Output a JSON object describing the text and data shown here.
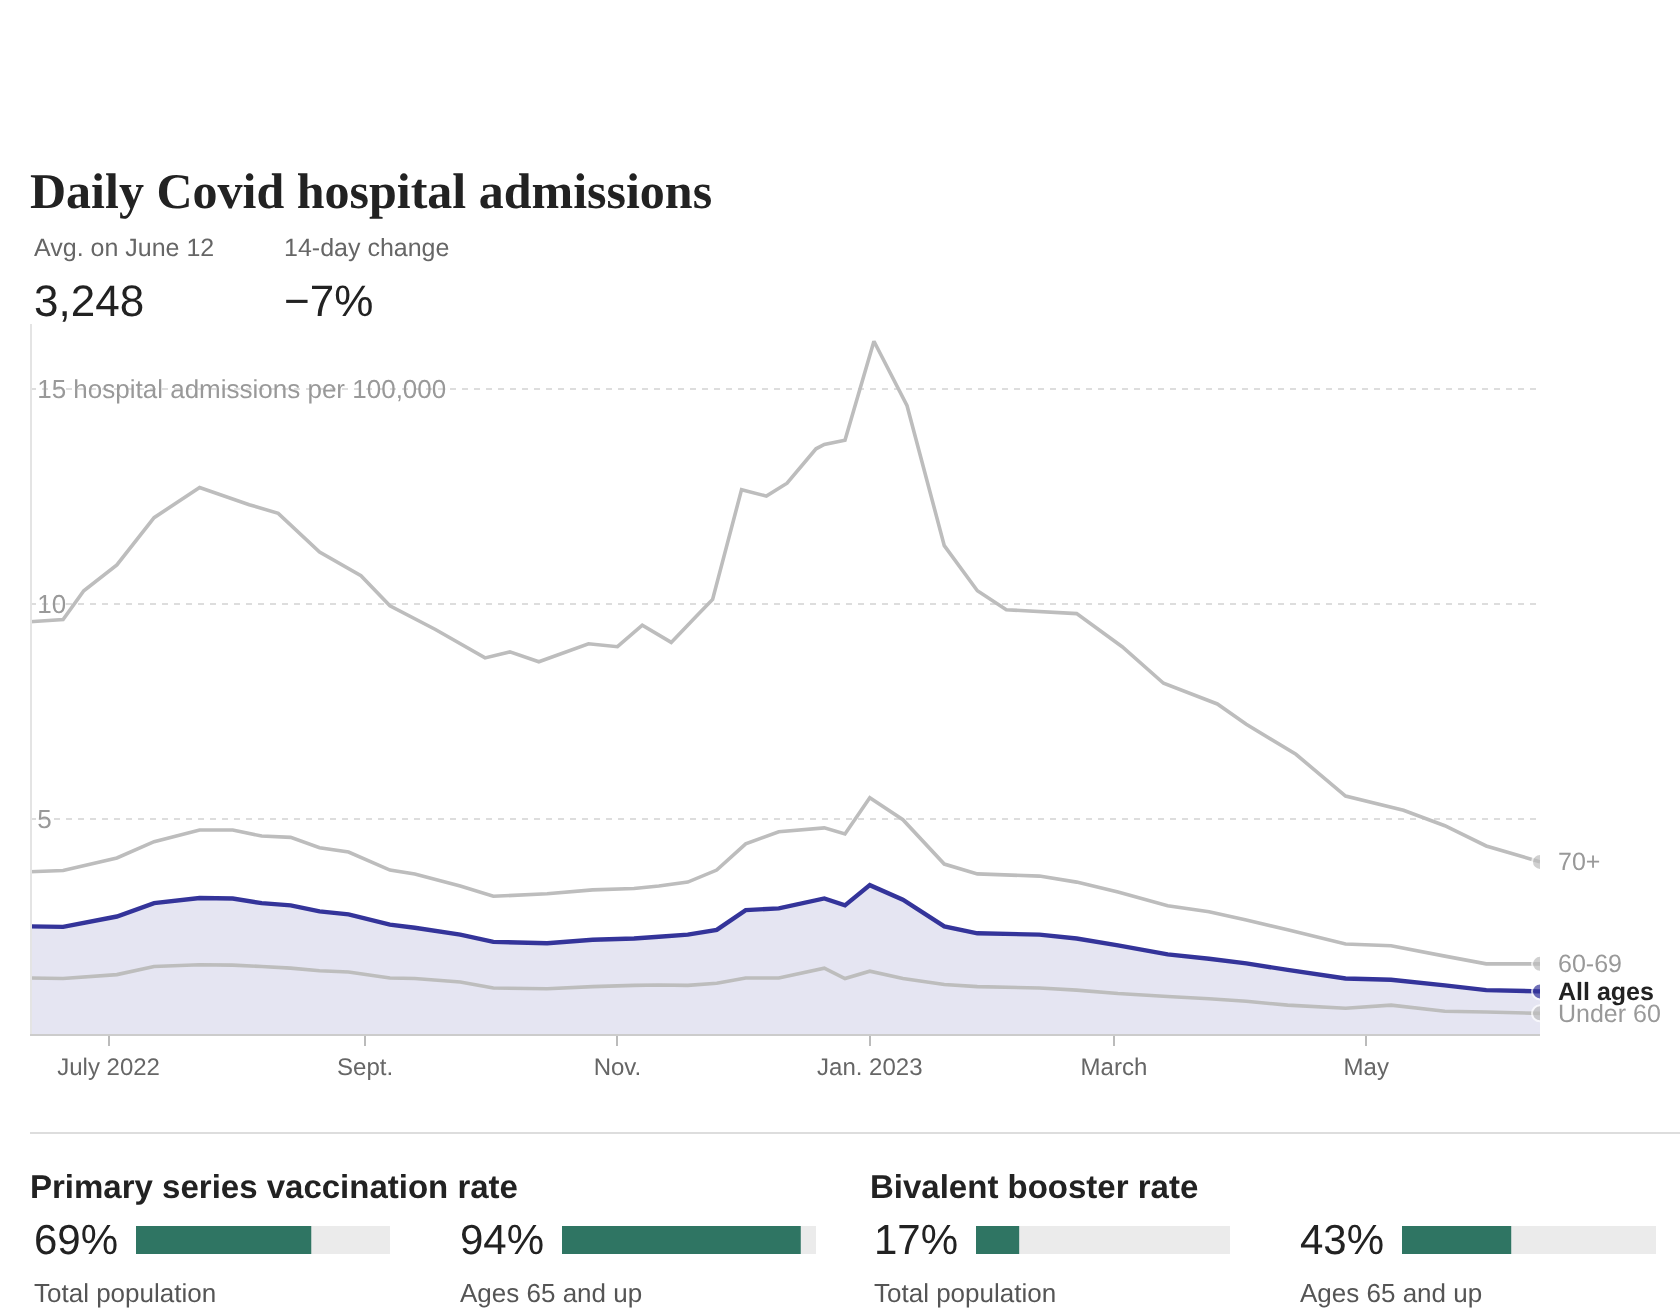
{
  "chart_data": [
    {
      "type": "line",
      "title": "Daily Covid hospital admissions",
      "annotations": [
        "Avg. on June 12",
        "3,248",
        "14-day change",
        "−7%"
      ],
      "xlim": [
        "2022-06-12",
        "2023-06-12"
      ],
      "xticks": [
        {
          "value": "2022-07-01",
          "label": "July 2022"
        },
        {
          "value": "2022-09-01",
          "label": "Sept."
        },
        {
          "value": "2022-11-01",
          "label": "Nov."
        },
        {
          "value": "2023-01-01",
          "label": "Jan. 2023"
        },
        {
          "value": "2023-03-01",
          "label": "March"
        },
        {
          "value": "2023-05-01",
          "label": "May"
        }
      ],
      "ylim": [
        0,
        16.5
      ],
      "yticks": [
        5,
        10,
        {
          "value": 15,
          "label": "15 hospital admissions per 100,000"
        }
      ],
      "grid": "y",
      "series": [
        {
          "name": "All ages",
          "type": "area",
          "color": "#34349a",
          "x": [
            "2022-06-12",
            "2022-06-20",
            "2022-07-03",
            "2022-07-12",
            "2022-07-23",
            "2022-07-31",
            "2022-08-07",
            "2022-08-14",
            "2022-08-21",
            "2022-08-28",
            "2022-09-07",
            "2022-09-13",
            "2022-09-24",
            "2022-10-02",
            "2022-10-15",
            "2022-10-26",
            "2022-11-05",
            "2022-11-11",
            "2022-11-18",
            "2022-11-25",
            "2022-12-02",
            "2022-12-10",
            "2022-12-21",
            "2022-12-26",
            "2023-01-01",
            "2023-01-09",
            "2023-01-19",
            "2023-01-27",
            "2023-02-11",
            "2023-02-20",
            "2023-03-02",
            "2023-03-14",
            "2023-03-24",
            "2023-04-02",
            "2023-04-12",
            "2023-04-26",
            "2023-05-07",
            "2023-05-20",
            "2023-05-30",
            "2023-06-12"
          ],
          "values": [
            2.5,
            2.49,
            2.73,
            3.04,
            3.16,
            3.15,
            3.04,
            2.99,
            2.85,
            2.78,
            2.54,
            2.47,
            2.31,
            2.14,
            2.11,
            2.19,
            2.22,
            2.26,
            2.31,
            2.42,
            2.88,
            2.92,
            3.15,
            2.99,
            3.46,
            3.12,
            2.5,
            2.34,
            2.31,
            2.22,
            2.06,
            1.85,
            1.75,
            1.64,
            1.49,
            1.29,
            1.26,
            1.13,
            1.02,
            0.99
          ]
        },
        {
          "name": "70+",
          "type": "line",
          "color": "#bdbdbd",
          "x": [
            "2022-06-12",
            "2022-06-20",
            "2022-06-25",
            "2022-07-03",
            "2022-07-12",
            "2022-07-23",
            "2022-08-04",
            "2022-08-11",
            "2022-08-21",
            "2022-08-31",
            "2022-09-07",
            "2022-09-18",
            "2022-09-30",
            "2022-10-06",
            "2022-10-13",
            "2022-10-25",
            "2022-11-01",
            "2022-11-07",
            "2022-11-14",
            "2022-11-20",
            "2022-11-24",
            "2022-12-01",
            "2022-12-07",
            "2022-12-12",
            "2022-12-19",
            "2022-12-21",
            "2022-12-26",
            "2023-01-02",
            "2023-01-10",
            "2023-01-19",
            "2023-01-27",
            "2023-02-03",
            "2023-02-20",
            "2023-03-03",
            "2023-03-13",
            "2023-03-26",
            "2023-04-02",
            "2023-04-14",
            "2023-04-26",
            "2023-05-10",
            "2023-05-20",
            "2023-05-30",
            "2023-06-12"
          ],
          "values": [
            9.58,
            9.63,
            10.3,
            10.9,
            12.0,
            12.7,
            12.3,
            12.1,
            11.2,
            10.65,
            9.95,
            9.4,
            8.74,
            8.88,
            8.65,
            9.07,
            9.0,
            9.5,
            9.1,
            9.7,
            10.1,
            12.65,
            12.5,
            12.8,
            13.6,
            13.7,
            13.8,
            16.1,
            14.6,
            11.35,
            10.3,
            9.86,
            9.77,
            9.0,
            8.15,
            7.67,
            7.2,
            6.5,
            5.53,
            5.2,
            4.84,
            4.37,
            4.0
          ]
        },
        {
          "name": "60-69",
          "type": "line",
          "color": "#bdbdbd",
          "x": [
            "2022-06-12",
            "2022-06-20",
            "2022-07-03",
            "2022-07-12",
            "2022-07-23",
            "2022-07-31",
            "2022-08-07",
            "2022-08-14",
            "2022-08-21",
            "2022-08-28",
            "2022-09-07",
            "2022-09-13",
            "2022-09-24",
            "2022-10-02",
            "2022-10-15",
            "2022-10-26",
            "2022-11-05",
            "2022-11-11",
            "2022-11-18",
            "2022-11-25",
            "2022-12-02",
            "2022-12-10",
            "2022-12-21",
            "2022-12-26",
            "2023-01-01",
            "2023-01-09",
            "2023-01-19",
            "2023-01-27",
            "2023-02-11",
            "2023-02-20",
            "2023-03-02",
            "2023-03-14",
            "2023-03-24",
            "2023-04-02",
            "2023-04-12",
            "2023-04-26",
            "2023-05-07",
            "2023-05-20",
            "2023-05-30",
            "2023-06-12"
          ],
          "values": [
            3.77,
            3.8,
            4.09,
            4.47,
            4.74,
            4.74,
            4.6,
            4.57,
            4.33,
            4.23,
            3.81,
            3.72,
            3.44,
            3.2,
            3.26,
            3.35,
            3.38,
            3.44,
            3.53,
            3.81,
            4.42,
            4.7,
            4.79,
            4.65,
            5.49,
            4.98,
            3.95,
            3.72,
            3.67,
            3.53,
            3.3,
            2.98,
            2.84,
            2.65,
            2.42,
            2.09,
            2.05,
            1.81,
            1.63,
            1.63
          ]
        },
        {
          "name": "Under 60",
          "type": "line",
          "color": "#bdbdbd",
          "x": [
            "2022-06-12",
            "2022-06-20",
            "2022-07-03",
            "2022-07-12",
            "2022-07-23",
            "2022-07-31",
            "2022-08-07",
            "2022-08-14",
            "2022-08-21",
            "2022-08-28",
            "2022-09-07",
            "2022-09-13",
            "2022-09-24",
            "2022-10-02",
            "2022-10-15",
            "2022-10-26",
            "2022-11-05",
            "2022-11-11",
            "2022-11-18",
            "2022-11-25",
            "2022-12-02",
            "2022-12-10",
            "2022-12-21",
            "2022-12-26",
            "2023-01-01",
            "2023-01-09",
            "2023-01-19",
            "2023-01-27",
            "2023-02-11",
            "2023-02-20",
            "2023-03-02",
            "2023-03-14",
            "2023-03-24",
            "2023-04-02",
            "2023-04-12",
            "2023-04-26",
            "2023-05-07",
            "2023-05-20",
            "2023-05-30",
            "2023-06-12"
          ],
          "values": [
            1.3,
            1.29,
            1.38,
            1.57,
            1.61,
            1.6,
            1.57,
            1.53,
            1.47,
            1.44,
            1.3,
            1.29,
            1.21,
            1.07,
            1.05,
            1.1,
            1.13,
            1.14,
            1.13,
            1.18,
            1.3,
            1.3,
            1.53,
            1.29,
            1.46,
            1.29,
            1.15,
            1.1,
            1.07,
            1.02,
            0.94,
            0.87,
            0.82,
            0.76,
            0.67,
            0.6,
            0.67,
            0.53,
            0.51,
            0.48
          ]
        }
      ]
    },
    {
      "type": "other",
      "title": "Primary series vaccination rate",
      "categories": [
        "Total population",
        "Ages 65 and up"
      ],
      "values": [
        69,
        94
      ],
      "value_labels": [
        "69%",
        "94%"
      ]
    },
    {
      "type": "other",
      "title": "Bivalent booster rate",
      "categories": [
        "Total population",
        "Ages 65 and up"
      ],
      "values": [
        17,
        43
      ],
      "value_labels": [
        "17%",
        "43%"
      ]
    }
  ]
}
